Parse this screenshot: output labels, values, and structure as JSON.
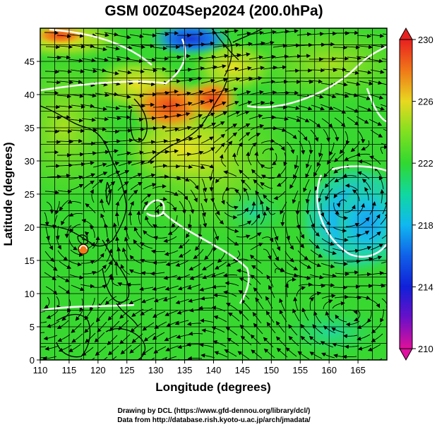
{
  "title": "GSM 00Z04Sep2024 (200.0hPa)",
  "xlabel": "Longitude (degrees)",
  "ylabel": "Latitude  (degrees)",
  "credits": [
    "Drawing by DCL (https://www.gfd-dennou.org/library/dcl/)",
    "Data from http://database.rish.kyoto-u.ac.jp/arch/jmadata/"
  ],
  "map": {
    "lon_range": [
      110,
      170
    ],
    "lat_range": [
      0,
      50
    ],
    "lon_ticks": [
      "110",
      "115",
      "120",
      "125",
      "130",
      "135",
      "140",
      "145",
      "150",
      "155",
      "160",
      "165"
    ],
    "lat_ticks": [
      "0",
      "5",
      "10",
      "15",
      "20",
      "25",
      "30",
      "35",
      "40",
      "45"
    ]
  },
  "colorbar": {
    "range": [
      210,
      230
    ],
    "ticks": [
      "210",
      "214",
      "218",
      "222",
      "226",
      "230"
    ]
  },
  "features": {
    "low_center_1": {
      "lon": 162.5,
      "lat": 23.5
    },
    "low_center_2": {
      "lon": 143.5,
      "lat": 24.5
    },
    "typhoon": {
      "lon": 117.5,
      "lat": 18.5
    }
  }
}
